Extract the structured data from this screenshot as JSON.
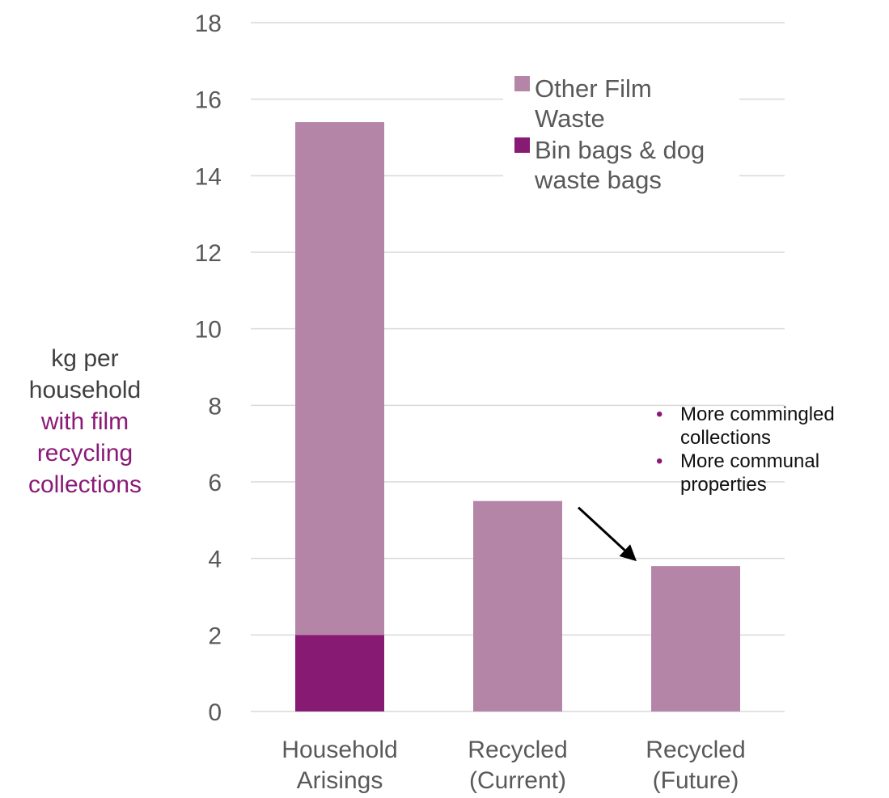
{
  "chart_data": {
    "type": "bar",
    "stacked": true,
    "categories": [
      [
        "Household",
        "Arisings"
      ],
      [
        "Recycled",
        "(Current)"
      ],
      [
        "Recycled",
        "(Future)"
      ]
    ],
    "series": [
      {
        "name": "Bin bags & dog waste bags",
        "values": [
          2.0,
          0,
          0
        ],
        "color": "#871A72"
      },
      {
        "name": "Other Film Waste",
        "values": [
          13.4,
          5.5,
          3.8
        ],
        "color": "#B585A8"
      }
    ],
    "legend": {
      "placement": "top-right",
      "entries": [
        {
          "lines": [
            "Other Film",
            "Waste"
          ],
          "color": "#B585A8"
        },
        {
          "lines": [
            "Bin bags & dog",
            "waste bags"
          ],
          "color": "#871A72"
        }
      ]
    },
    "ylim": [
      0,
      18
    ],
    "yticks": [
      0,
      2,
      4,
      6,
      8,
      10,
      12,
      14,
      16,
      18
    ],
    "ylabel": {
      "plain": [
        "kg per",
        "household"
      ],
      "accent": [
        "with film",
        "recycling",
        "collections"
      ]
    },
    "grid": true,
    "annotation": {
      "bullets": [
        "More commingled collections",
        "More communal properties"
      ],
      "arrow": {
        "from": "Recycled (Current)",
        "to": "Recycled (Future)"
      }
    }
  },
  "colors": {
    "grid": "#D9D9D9",
    "axis_text": "#595959",
    "accent": "#8A1A77",
    "arrow": "#000000"
  }
}
